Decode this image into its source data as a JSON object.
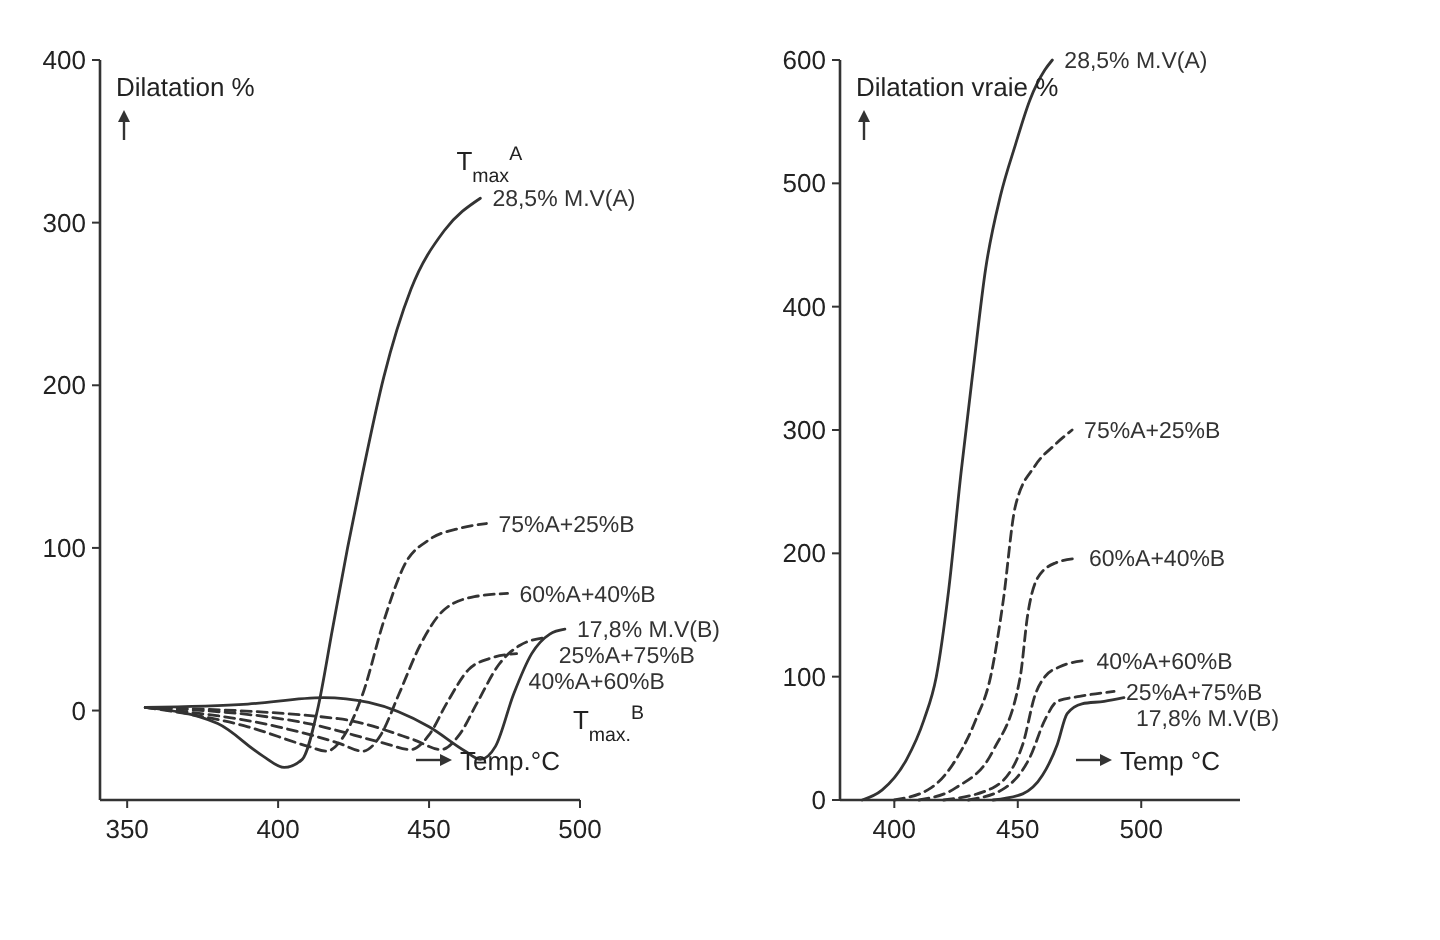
{
  "chart_data": [
    {
      "type": "line",
      "ylabel": "Dilatation %",
      "xlabel": "Temp.°C",
      "xlim": [
        341,
        500
      ],
      "ylim": [
        -55,
        400
      ],
      "xticks": [
        350,
        400,
        450,
        500
      ],
      "yticks": [
        0,
        100,
        200,
        300,
        400
      ],
      "grid": false,
      "annotations": [
        {
          "text": "T$_{max}$$^{A}$",
          "x": 467,
          "y": 315
        },
        {
          "text": "T$_{max.}$$^{B}$",
          "x": 495,
          "y": 50
        }
      ],
      "series": [
        {
          "name": "28,5% M.V(A)",
          "color": "#333333",
          "line_style": "solid",
          "x": [
            356,
            380,
            395,
            402,
            408,
            413,
            418,
            423,
            428,
            435,
            444,
            455,
            467
          ],
          "values": [
            2,
            -8,
            -28,
            -35,
            -30,
            0,
            50,
            100,
            146,
            205,
            259,
            295,
            315
          ]
        },
        {
          "name": "75%A+25%B",
          "color": "#333333",
          "line_style": "dashed",
          "x": [
            356,
            390,
            410,
            416,
            422,
            428,
            435,
            442,
            450,
            460,
            469
          ],
          "values": [
            2,
            -10,
            -22,
            -25,
            -15,
            10,
            55,
            90,
            105,
            112,
            115
          ]
        },
        {
          "name": "60%A+40%B",
          "color": "#333333",
          "line_style": "dashed",
          "x": [
            356,
            400,
            420,
            428,
            434,
            440,
            447,
            455,
            465,
            476
          ],
          "values": [
            2,
            -10,
            -20,
            -25,
            -15,
            10,
            40,
            62,
            70,
            72
          ]
        },
        {
          "name": "40%A+60%B",
          "color": "#333333",
          "line_style": "dashed",
          "x": [
            356,
            410,
            435,
            444,
            450,
            456,
            463,
            470,
            479
          ],
          "values": [
            2,
            -8,
            -20,
            -24,
            -15,
            5,
            25,
            32,
            35
          ]
        },
        {
          "name": "25%A+75%B",
          "color": "#333333",
          "line_style": "dashed",
          "x": [
            356,
            420,
            445,
            454,
            460,
            466,
            473,
            480,
            489
          ],
          "values": [
            2,
            -5,
            -18,
            -24,
            -15,
            5,
            28,
            40,
            45
          ]
        },
        {
          "name": "17,8% M.V(B)",
          "color": "#333333",
          "line_style": "solid",
          "x": [
            356,
            390,
            415,
            430,
            450,
            462,
            467,
            472,
            478,
            484,
            490,
            495
          ],
          "values": [
            2,
            4,
            8,
            5,
            -10,
            -25,
            -30,
            -22,
            10,
            35,
            47,
            50
          ]
        }
      ]
    },
    {
      "type": "line",
      "ylabel": "Dilatation vraie %",
      "xlabel": "Temp °C",
      "xlim": [
        378,
        540
      ],
      "ylim": [
        0,
        600
      ],
      "xticks": [
        400,
        450,
        500
      ],
      "yticks": [
        0,
        100,
        200,
        300,
        400,
        500,
        600
      ],
      "grid": false,
      "series": [
        {
          "name": "28,5% M.V(A)",
          "color": "#333333",
          "line_style": "solid",
          "x": [
            387,
            395,
            405,
            412,
            417,
            422,
            427,
            432,
            437,
            443,
            449,
            455,
            461,
            464
          ],
          "values": [
            0,
            8,
            33,
            65,
            100,
            170,
            265,
            350,
            431,
            490,
            531,
            568,
            592,
            600
          ]
        },
        {
          "name": "75%A+25%B",
          "color": "#333333",
          "line_style": "dashed",
          "x": [
            400,
            415,
            425,
            433,
            439,
            444,
            449,
            457,
            465,
            472
          ],
          "values": [
            0,
            10,
            33,
            65,
            100,
            160,
            238,
            271,
            288,
            300
          ]
        },
        {
          "name": "60%A+40%B",
          "color": "#333333",
          "line_style": "dashed",
          "x": [
            410,
            425,
            440,
            451,
            454,
            458,
            465,
            474
          ],
          "values": [
            0,
            10,
            40,
            100,
            150,
            180,
            192,
            196
          ]
        },
        {
          "name": "40%A+60%B",
          "color": "#333333",
          "line_style": "dashed",
          "x": [
            420,
            440,
            452,
            457,
            461,
            467,
            477
          ],
          "values": [
            0,
            10,
            45,
            85,
            100,
            108,
            113
          ]
        },
        {
          "name": "25%A+75%B",
          "color": "#333333",
          "line_style": "dashed",
          "x": [
            430,
            445,
            455,
            461,
            466,
            475,
            489
          ],
          "values": [
            0,
            10,
            35,
            65,
            80,
            84,
            88
          ]
        },
        {
          "name": "17,8% M.V(B)",
          "color": "#333333",
          "line_style": "solid",
          "x": [
            440,
            452,
            460,
            466,
            470,
            476,
            485,
            493
          ],
          "values": [
            0,
            5,
            20,
            45,
            70,
            78,
            80,
            83
          ]
        }
      ]
    }
  ]
}
